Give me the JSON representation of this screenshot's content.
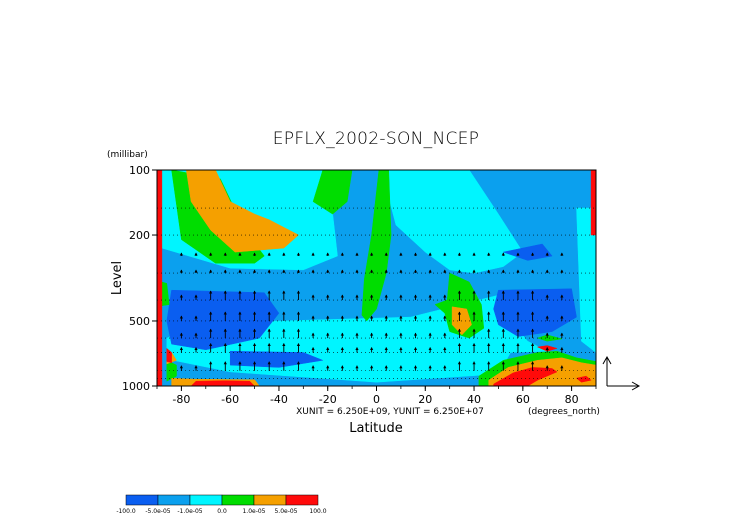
{
  "chart_data": {
    "type": "heatmap",
    "title": "EPFLX_2002-SON_NCEP",
    "xlabel": "Latitude",
    "ylabel": "Level",
    "x_units": "(degrees_north)",
    "y_units": "(millibar)",
    "xlim": [
      -90,
      90
    ],
    "ylim": [
      1000,
      100
    ],
    "y_scale": "log",
    "x_ticks": [
      "-80",
      "-60",
      "-40",
      "-20",
      "0",
      "20",
      "40",
      "60",
      "80"
    ],
    "y_ticks": [
      "100",
      "200",
      "500",
      "1000"
    ],
    "vector_scale_label": "XUNIT = 6.250E+09, YUNIT = 6.250E+07",
    "colorbar": {
      "levels": [
        "-100.0",
        "-5.0e-05",
        "-1.0e-05",
        "0.0",
        "1.0e-05",
        "5.0e-05",
        "100.0"
      ],
      "colors": [
        "#0a5ef0",
        "#0ba0ee",
        "#00f5ff",
        "#00dd00",
        "#f5a000",
        "#ff0a0a"
      ]
    },
    "regions": [
      {
        "category": 1,
        "polygon": [
          [
            -90,
            100
          ],
          [
            90,
            100
          ],
          [
            90,
            1000
          ],
          [
            -90,
            1000
          ]
        ]
      },
      {
        "category": 2,
        "polygon": [
          [
            -88,
            100
          ],
          [
            -20,
            100
          ],
          [
            -16,
            250
          ],
          [
            -30,
            290
          ],
          [
            -60,
            285
          ],
          [
            -88,
            230
          ]
        ]
      },
      {
        "category": 2,
        "polygon": [
          [
            -40,
            500
          ],
          [
            14,
            480
          ],
          [
            42,
            400
          ],
          [
            50,
            380
          ],
          [
            55,
            500
          ],
          [
            62,
            620
          ],
          [
            70,
            690
          ],
          [
            55,
            700
          ],
          [
            50,
            880
          ],
          [
            0,
            960
          ],
          [
            -60,
            860
          ],
          [
            -86,
            750
          ],
          [
            -86,
            600
          ],
          [
            -70,
            500
          ]
        ]
      },
      {
        "category": 2,
        "polygon": [
          [
            2,
            100
          ],
          [
            38,
            100
          ],
          [
            50,
            160
          ],
          [
            60,
            240
          ],
          [
            52,
            280
          ],
          [
            40,
            300
          ],
          [
            30,
            290
          ],
          [
            20,
            240
          ],
          [
            8,
            180
          ]
        ]
      },
      {
        "category": 2,
        "polygon": [
          [
            12,
            540
          ],
          [
            30,
            600
          ],
          [
            36,
            700
          ],
          [
            28,
            780
          ],
          [
            14,
            700
          ],
          [
            10,
            600
          ]
        ]
      },
      {
        "category": 2,
        "polygon": [
          [
            82,
            150
          ],
          [
            90,
            150
          ],
          [
            90,
            700
          ],
          [
            84,
            620
          ]
        ]
      },
      {
        "category": 0,
        "polygon": [
          [
            -84,
            360
          ],
          [
            -46,
            370
          ],
          [
            -40,
            460
          ],
          [
            -48,
            600
          ],
          [
            -70,
            680
          ],
          [
            -84,
            640
          ],
          [
            -86,
            500
          ]
        ]
      },
      {
        "category": 0,
        "polygon": [
          [
            -60,
            690
          ],
          [
            -30,
            700
          ],
          [
            -22,
            760
          ],
          [
            -40,
            820
          ],
          [
            -60,
            800
          ]
        ]
      },
      {
        "category": 0,
        "polygon": [
          [
            50,
            360
          ],
          [
            80,
            355
          ],
          [
            82,
            480
          ],
          [
            72,
            560
          ],
          [
            58,
            590
          ],
          [
            50,
            520
          ],
          [
            48,
            440
          ]
        ]
      },
      {
        "category": 0,
        "polygon": [
          [
            52,
            240
          ],
          [
            68,
            220
          ],
          [
            72,
            250
          ],
          [
            62,
            262
          ]
        ]
      },
      {
        "category": 3,
        "polygon": [
          [
            -84,
            100
          ],
          [
            -64,
            110
          ],
          [
            -54,
            190
          ],
          [
            -46,
            250
          ],
          [
            -50,
            270
          ],
          [
            -66,
            270
          ],
          [
            -80,
            210
          ]
        ]
      },
      {
        "category": 3,
        "polygon": [
          [
            -22,
            100
          ],
          [
            -10,
            100
          ],
          [
            -12,
            140
          ],
          [
            -18,
            160
          ],
          [
            -26,
            140
          ]
        ]
      },
      {
        "category": 3,
        "polygon": [
          [
            1,
            100
          ],
          [
            5,
            100
          ],
          [
            6,
            200
          ],
          [
            4,
            300
          ],
          [
            0,
            440
          ],
          [
            -4,
            500
          ],
          [
            -6,
            470
          ],
          [
            -5,
            320
          ],
          [
            -2,
            200
          ]
        ]
      },
      {
        "category": 3,
        "polygon": [
          [
            30,
            300
          ],
          [
            38,
            330
          ],
          [
            43,
            420
          ],
          [
            44,
            540
          ],
          [
            38,
            600
          ],
          [
            30,
            560
          ],
          [
            28,
            460
          ],
          [
            24,
            420
          ],
          [
            29,
            400
          ]
        ]
      },
      {
        "category": 3,
        "polygon": [
          [
            -88,
            330
          ],
          [
            -86,
            335
          ],
          [
            -85,
            420
          ],
          [
            -88,
            425
          ]
        ]
      },
      {
        "category": 3,
        "polygon": [
          [
            -86,
            760
          ],
          [
            -82,
            800
          ],
          [
            -82,
            900
          ],
          [
            -86,
            950
          ]
        ]
      },
      {
        "category": 3,
        "polygon": [
          [
            42,
            900
          ],
          [
            52,
            760
          ],
          [
            66,
            700
          ],
          [
            74,
            690
          ],
          [
            82,
            740
          ],
          [
            90,
            770
          ],
          [
            90,
            1000
          ],
          [
            42,
            1000
          ]
        ]
      },
      {
        "category": 3,
        "polygon": [
          [
            66,
            600
          ],
          [
            70,
            580
          ],
          [
            76,
            605
          ],
          [
            70,
            620
          ]
        ]
      },
      {
        "category": 4,
        "polygon": [
          [
            -78,
            100
          ],
          [
            -66,
            100
          ],
          [
            -60,
            140
          ],
          [
            -50,
            160
          ],
          [
            -44,
            170
          ],
          [
            -32,
            200
          ],
          [
            -38,
            230
          ],
          [
            -58,
            240
          ],
          [
            -68,
            190
          ],
          [
            -76,
            140
          ]
        ]
      },
      {
        "category": 4,
        "polygon": [
          [
            31,
            430
          ],
          [
            37,
            440
          ],
          [
            39,
            520
          ],
          [
            35,
            580
          ],
          [
            31,
            520
          ]
        ]
      },
      {
        "category": 4,
        "polygon": [
          [
            -86,
            680
          ],
          [
            -84,
            700
          ],
          [
            -82,
            760
          ],
          [
            -86,
            790
          ]
        ]
      },
      {
        "category": 4,
        "polygon": [
          [
            46,
            940
          ],
          [
            54,
            820
          ],
          [
            66,
            760
          ],
          [
            76,
            740
          ],
          [
            84,
            780
          ],
          [
            90,
            800
          ],
          [
            90,
            1000
          ],
          [
            46,
            1000
          ]
        ]
      },
      {
        "category": 4,
        "polygon": [
          [
            -84,
            920
          ],
          [
            -74,
            930
          ],
          [
            -50,
            935
          ],
          [
            -48,
            1000
          ],
          [
            -84,
            1000
          ]
        ]
      },
      {
        "category": 5,
        "polygon": [
          [
            -90,
            100
          ],
          [
            -88,
            100
          ],
          [
            -88,
            1000
          ],
          [
            -90,
            1000
          ]
        ]
      },
      {
        "category": 5,
        "polygon": [
          [
            88,
            100
          ],
          [
            90,
            100
          ],
          [
            90,
            200
          ],
          [
            88,
            200
          ]
        ]
      },
      {
        "category": 5,
        "polygon": [
          [
            -86,
            670
          ],
          [
            -84,
            700
          ],
          [
            -84,
            780
          ],
          [
            -86,
            770
          ]
        ]
      },
      {
        "category": 5,
        "polygon": [
          [
            -74,
            950
          ],
          [
            -62,
            945
          ],
          [
            -52,
            950
          ],
          [
            -50,
            1000
          ],
          [
            -76,
            1000
          ]
        ]
      },
      {
        "category": 5,
        "polygon": [
          [
            48,
            980
          ],
          [
            56,
            870
          ],
          [
            64,
            820
          ],
          [
            72,
            830
          ],
          [
            74,
            860
          ],
          [
            66,
            940
          ],
          [
            62,
            1000
          ],
          [
            48,
            1000
          ]
        ]
      },
      {
        "category": 5,
        "polygon": [
          [
            66,
            660
          ],
          [
            70,
            650
          ],
          [
            74,
            670
          ],
          [
            70,
            690
          ]
        ]
      },
      {
        "category": 5,
        "polygon": [
          [
            82,
            920
          ],
          [
            86,
            900
          ],
          [
            88,
            940
          ],
          [
            84,
            960
          ]
        ]
      }
    ],
    "grid": "dotted"
  }
}
